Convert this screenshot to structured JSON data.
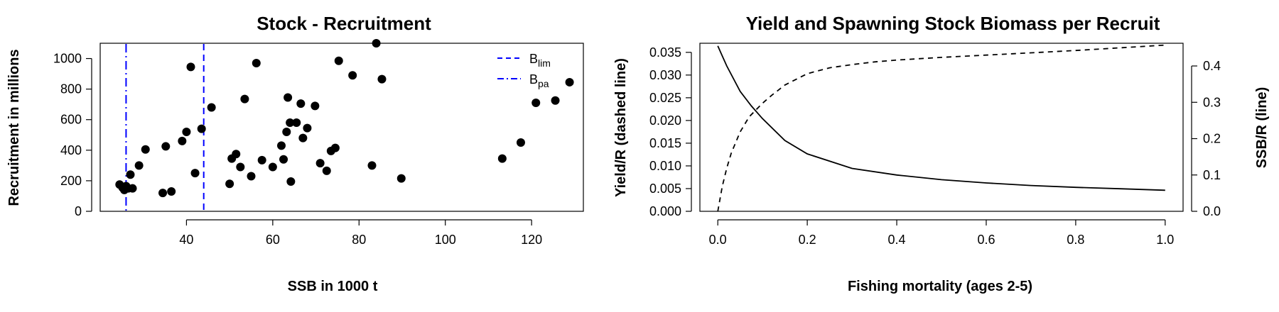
{
  "chart_data": [
    {
      "type": "scatter",
      "title": "Stock - Recruitment",
      "xlabel": "SSB in 1000 t",
      "ylabel": "Recruitment in millions",
      "xlim": [
        20,
        132
      ],
      "ylim": [
        0,
        1100
      ],
      "xticks": [
        40,
        60,
        80,
        100,
        120
      ],
      "yticks": [
        0,
        200,
        400,
        600,
        800,
        1000
      ],
      "points": [
        [
          24.5,
          175
        ],
        [
          25.2,
          155
        ],
        [
          25.6,
          140
        ],
        [
          26.0,
          165
        ],
        [
          26.5,
          150
        ],
        [
          27.0,
          240
        ],
        [
          27.5,
          150
        ],
        [
          29.0,
          300
        ],
        [
          30.5,
          405
        ],
        [
          34.5,
          120
        ],
        [
          35.2,
          425
        ],
        [
          36.5,
          130
        ],
        [
          39.0,
          460
        ],
        [
          40.0,
          520
        ],
        [
          41.0,
          945
        ],
        [
          42.0,
          250
        ],
        [
          43.5,
          540
        ],
        [
          45.8,
          680
        ],
        [
          50.0,
          180
        ],
        [
          50.5,
          345
        ],
        [
          51.5,
          375
        ],
        [
          52.5,
          290
        ],
        [
          53.5,
          735
        ],
        [
          55.0,
          230
        ],
        [
          56.2,
          970
        ],
        [
          57.5,
          335
        ],
        [
          60.0,
          290
        ],
        [
          62.0,
          430
        ],
        [
          62.5,
          340
        ],
        [
          63.2,
          520
        ],
        [
          63.5,
          745
        ],
        [
          64.0,
          580
        ],
        [
          64.2,
          195
        ],
        [
          65.5,
          580
        ],
        [
          66.5,
          705
        ],
        [
          67.0,
          480
        ],
        [
          68.0,
          545
        ],
        [
          69.8,
          690
        ],
        [
          71.0,
          315
        ],
        [
          72.5,
          265
        ],
        [
          73.5,
          395
        ],
        [
          74.5,
          415
        ],
        [
          75.3,
          985
        ],
        [
          78.5,
          890
        ],
        [
          83.0,
          300
        ],
        [
          84.0,
          1100
        ],
        [
          85.3,
          865
        ],
        [
          89.8,
          215
        ],
        [
          113.2,
          345
        ],
        [
          117.5,
          450
        ],
        [
          121.0,
          710
        ],
        [
          125.5,
          725
        ],
        [
          128.8,
          845
        ]
      ],
      "reference_lines": [
        {
          "name": "B_lim",
          "label_main": "B",
          "label_sub": "lim",
          "x": 44.0,
          "style": "dashed",
          "color": "#0000ff"
        },
        {
          "name": "B_pa",
          "label_main": "B",
          "label_sub": "pa",
          "x": 26.0,
          "style": "dashdot",
          "color": "#0000ff"
        }
      ],
      "legend_position": "top-right"
    },
    {
      "type": "line",
      "title": "Yield and Spawning Stock Biomass per Recruit",
      "xlabel": "Fishing mortality (ages 2-5)",
      "ylabel_left": "Yield/R (dashed line)",
      "ylabel_right": "SSB/R (line)",
      "xlim": [
        -0.04,
        1.04
      ],
      "ylim_left": [
        0,
        0.037
      ],
      "ylim_right": [
        0,
        0.4625
      ],
      "xticks": [
        "0.0",
        "0.2",
        "0.4",
        "0.6",
        "0.8",
        "1.0"
      ],
      "yticks_left": [
        "0.000",
        "0.005",
        "0.010",
        "0.015",
        "0.020",
        "0.025",
        "0.030",
        "0.035"
      ],
      "yticks_right": [
        "0.0",
        "0.1",
        "0.2",
        "0.3",
        "0.4"
      ],
      "series": [
        {
          "axis": "left",
          "style": "dashed",
          "x": [
            0.0,
            0.01,
            0.02,
            0.03,
            0.05,
            0.07,
            0.1,
            0.12,
            0.15,
            0.2,
            0.25,
            0.3,
            0.35,
            0.4,
            0.5,
            0.6,
            0.7,
            0.8,
            0.9,
            1.0
          ],
          "y": [
            0.0,
            0.0055,
            0.0095,
            0.0128,
            0.0175,
            0.0208,
            0.0238,
            0.0255,
            0.0278,
            0.0303,
            0.0316,
            0.0323,
            0.0329,
            0.0333,
            0.0339,
            0.0344,
            0.0349,
            0.0354,
            0.036,
            0.0366
          ]
        },
        {
          "axis": "right",
          "style": "solid",
          "x": [
            0.0,
            0.02,
            0.05,
            0.075,
            0.1,
            0.15,
            0.2,
            0.3,
            0.4,
            0.5,
            0.6,
            0.7,
            0.8,
            0.9,
            1.0
          ],
          "y": [
            0.455,
            0.4,
            0.33,
            0.29,
            0.255,
            0.195,
            0.158,
            0.118,
            0.1,
            0.087,
            0.078,
            0.071,
            0.066,
            0.062,
            0.058
          ]
        }
      ]
    }
  ]
}
